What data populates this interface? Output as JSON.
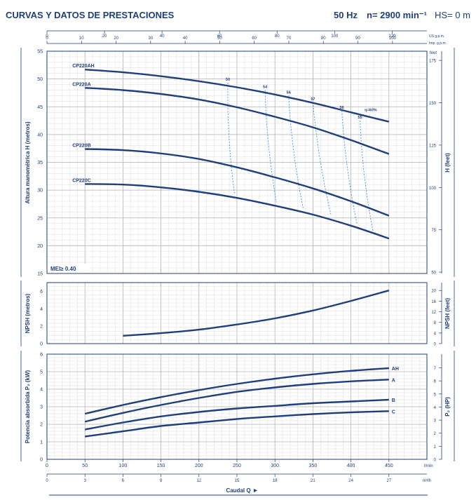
{
  "header": {
    "title": "CURVAS Y DATOS DE PRESTACIONES",
    "frequency": "50 Hz",
    "speed": "n= 2900 min⁻¹",
    "suction": "HS= 0 m"
  },
  "colors": {
    "curve": "#1f3f7a",
    "efficiency": "#4a90d9",
    "grid": "#c8c8c8",
    "frame": "#1f3f7a"
  },
  "chart_data": [
    {
      "type": "line",
      "panel": "head",
      "ylabel": "Altura manométrica H  (metros)",
      "ylabel_right": "H  (feet)",
      "x_units": "l/min",
      "xlim": [
        0,
        500
      ],
      "ylim": [
        15,
        55
      ],
      "y_ticks": [
        15,
        20,
        25,
        30,
        35,
        40,
        45,
        50,
        55
      ],
      "y_right_ticks": [
        50,
        75,
        100,
        125,
        150,
        175
      ],
      "y_right_unit": "feet",
      "top_axis_us": {
        "ticks": [
          0,
          20,
          40,
          60,
          80,
          100,
          120
        ],
        "unit": "US g.p.m."
      },
      "top_axis_imp": {
        "ticks": [
          0,
          10,
          20,
          30,
          40,
          50,
          60,
          70,
          80,
          90,
          100
        ],
        "unit": "Imp. g.p.m."
      },
      "badge": "MEI≥ 0.40",
      "series": [
        {
          "name": "CP220AH",
          "x": [
            50,
            100,
            150,
            200,
            250,
            300,
            350,
            400,
            450
          ],
          "y": [
            51.7,
            51.2,
            50.5,
            49.6,
            48.5,
            47.2,
            45.7,
            44.0,
            42.3
          ]
        },
        {
          "name": "CP220A",
          "x": [
            50,
            100,
            150,
            200,
            250,
            300,
            350,
            400,
            450
          ],
          "y": [
            48.4,
            48.0,
            47.3,
            46.3,
            44.9,
            43.2,
            41.3,
            39.0,
            36.5
          ]
        },
        {
          "name": "CP220B",
          "x": [
            50,
            100,
            150,
            200,
            250,
            300,
            350,
            400,
            450
          ],
          "y": [
            37.4,
            37.2,
            36.6,
            35.6,
            34.1,
            32.3,
            30.3,
            28.0,
            25.4
          ]
        },
        {
          "name": "CP220C",
          "x": [
            50,
            100,
            150,
            200,
            250,
            300,
            350,
            400,
            450
          ],
          "y": [
            31.1,
            31.0,
            30.5,
            29.7,
            28.6,
            27.2,
            25.6,
            23.6,
            21.3
          ]
        }
      ],
      "efficiency_lines": [
        {
          "label": "50",
          "x": [
            238,
            247
          ],
          "y": [
            49.3,
            29.2
          ]
        },
        {
          "label": "54",
          "x": [
            287,
            302
          ],
          "y": [
            48.0,
            27.8
          ]
        },
        {
          "label": "56",
          "x": [
            318,
            337
          ],
          "y": [
            47.0,
            26.8
          ]
        },
        {
          "label": "57",
          "x": [
            350,
            374
          ],
          "y": [
            45.8,
            25.4
          ]
        },
        {
          "label": "56",
          "x": [
            388,
            408
          ],
          "y": [
            44.3,
            23.9
          ]
        },
        {
          "label": "55",
          "x": [
            412,
            429
          ],
          "y": [
            42.5,
            22.6
          ]
        }
      ],
      "efficiency_note": "η=60%"
    },
    {
      "type": "line",
      "panel": "npsh",
      "ylabel": "NPSH  (metros)",
      "ylabel_right": "NPSH  (feet)",
      "ylim": [
        0,
        7
      ],
      "y_ticks": [
        0,
        2,
        4,
        6
      ],
      "y_right_ticks": [
        0,
        4,
        8,
        12,
        16,
        20
      ],
      "series": [
        {
          "name": "NPSH",
          "x": [
            100,
            150,
            200,
            250,
            300,
            350,
            400,
            450
          ],
          "y": [
            0.9,
            1.2,
            1.6,
            2.2,
            2.9,
            3.8,
            4.9,
            6.1
          ]
        }
      ]
    },
    {
      "type": "line",
      "panel": "power",
      "ylabel": "Potencia absorbida P₂  (kW)",
      "ylabel_right": "P₂  (HP)",
      "ylim": [
        0,
        6
      ],
      "y_ticks": [
        0,
        1,
        2,
        3,
        4,
        5,
        6
      ],
      "y_right_ticks": [
        0,
        1,
        2,
        3,
        4,
        5,
        6,
        7
      ],
      "series": [
        {
          "name": "AH",
          "x": [
            50,
            100,
            150,
            200,
            250,
            300,
            350,
            400,
            450
          ],
          "y": [
            2.6,
            3.1,
            3.55,
            3.95,
            4.3,
            4.6,
            4.85,
            5.05,
            5.2
          ]
        },
        {
          "name": "A",
          "x": [
            50,
            100,
            150,
            200,
            250,
            300,
            350,
            400,
            450
          ],
          "y": [
            2.15,
            2.65,
            3.1,
            3.5,
            3.85,
            4.1,
            4.3,
            4.45,
            4.55
          ]
        },
        {
          "name": "B",
          "x": [
            50,
            100,
            150,
            200,
            250,
            300,
            350,
            400,
            450
          ],
          "y": [
            1.7,
            2.1,
            2.45,
            2.7,
            2.9,
            3.05,
            3.2,
            3.3,
            3.4
          ]
        },
        {
          "name": "C",
          "x": [
            50,
            100,
            150,
            200,
            250,
            300,
            350,
            400,
            450
          ],
          "y": [
            1.3,
            1.6,
            1.9,
            2.1,
            2.3,
            2.45,
            2.58,
            2.68,
            2.75
          ]
        }
      ],
      "x_ticks": [
        0,
        50,
        100,
        150,
        200,
        250,
        300,
        350,
        400,
        450
      ],
      "x_unit": "l/min",
      "x2_ticks": [
        0,
        3,
        6,
        9,
        12,
        15,
        18,
        21,
        24,
        27
      ],
      "x2_unit": "m³/h",
      "xlabel": "Caudal  Q"
    }
  ]
}
